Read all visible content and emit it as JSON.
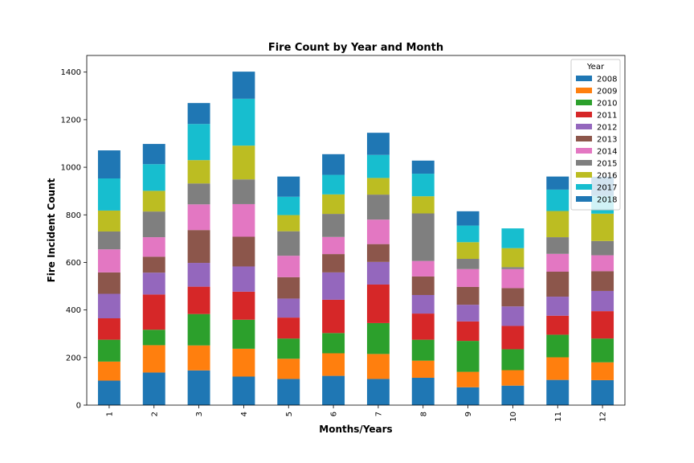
{
  "chart_data": {
    "type": "bar",
    "stacked": true,
    "title": "Fire Count by Year and Month",
    "xlabel": "Months/Years",
    "ylabel": "Fire Incident Count",
    "categories": [
      "1",
      "2",
      "3",
      "4",
      "5",
      "6",
      "7",
      "8",
      "9",
      "10",
      "11",
      "12"
    ],
    "ylim": [
      0,
      1470
    ],
    "yticks": [
      0,
      200,
      400,
      600,
      800,
      1000,
      1200,
      1400
    ],
    "grid": false,
    "legend": {
      "title": "Year",
      "placement": "top-right"
    },
    "series": [
      {
        "name": "2008",
        "color": "#1f77b4",
        "values": [
          103,
          137,
          146,
          120,
          110,
          123,
          110,
          115,
          75,
          82,
          106,
          105
        ]
      },
      {
        "name": "2009",
        "color": "#ff7f0e",
        "values": [
          80,
          115,
          105,
          117,
          85,
          95,
          105,
          72,
          65,
          65,
          95,
          75
        ]
      },
      {
        "name": "2010",
        "color": "#2ca02c",
        "values": [
          92,
          65,
          132,
          122,
          85,
          85,
          130,
          88,
          130,
          88,
          95,
          100
        ]
      },
      {
        "name": "2011",
        "color": "#d62728",
        "values": [
          90,
          148,
          115,
          118,
          88,
          140,
          162,
          110,
          82,
          98,
          80,
          115
        ]
      },
      {
        "name": "2012",
        "color": "#9467bd",
        "values": [
          103,
          92,
          100,
          106,
          80,
          115,
          95,
          78,
          70,
          82,
          80,
          85
        ]
      },
      {
        "name": "2013",
        "color": "#8c564b",
        "values": [
          90,
          67,
          138,
          125,
          90,
          77,
          75,
          78,
          75,
          77,
          105,
          83
        ]
      },
      {
        "name": "2014",
        "color": "#e377c2",
        "values": [
          97,
          82,
          108,
          137,
          90,
          72,
          103,
          65,
          75,
          80,
          75,
          67
        ]
      },
      {
        "name": "2015",
        "color": "#7f7f7f",
        "values": [
          75,
          108,
          88,
          104,
          103,
          97,
          105,
          200,
          43,
          8,
          70,
          60
        ]
      },
      {
        "name": "2016",
        "color": "#bcbd22",
        "values": [
          88,
          87,
          98,
          142,
          68,
          82,
          70,
          72,
          70,
          80,
          110,
          115
        ]
      },
      {
        "name": "2017",
        "color": "#17becf",
        "values": [
          135,
          112,
          152,
          197,
          77,
          82,
          97,
          95,
          70,
          83,
          90,
          75
        ]
      },
      {
        "name": "2018",
        "color": "#1f77b4",
        "values": [
          118,
          85,
          88,
          114,
          85,
          87,
          93,
          55,
          60,
          0,
          55,
          80
        ]
      }
    ]
  }
}
